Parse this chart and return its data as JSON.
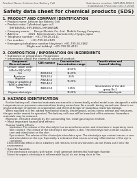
{
  "bg_color": "#f0ede8",
  "text_color": "#222222",
  "title": "Safety data sheet for chemical products (SDS)",
  "header_left": "Product Name: Lithium Ion Battery Cell",
  "header_right_line1": "Substance number: SWX4N9-00610",
  "header_right_line2": "Established / Revision: Dec.7.2018",
  "section1_title": "1. PRODUCT AND COMPANY IDENTIFICATION",
  "section1_lines": [
    "  • Product name: Lithium Ion Battery Cell",
    "  • Product code: Cylindrical-type cell",
    "       (IHF18650U, IHF18650L, IHR18650A)",
    "  • Company name:     Denyo Electric Co., Ltd.  Mobile Energy Company",
    "  • Address:           2021  Kamimatsuen, Sumoto-City, Hyogo, Japan",
    "  • Telephone number:  +81-799-26-4111",
    "  • Fax number:        +81-799-26-4129",
    "  • Emergency telephone number (daytime): +81-799-26-3662",
    "                           (Night and holiday): +81-799-26-4101"
  ],
  "section2_title": "2. COMPOSITION / INFORMATION ON INGREDIENTS",
  "section2_sub1": "  • Substance or preparation: Preparation",
  "section2_sub2": "  • Information about the chemical nature of product:",
  "table_headers": [
    "Component\n(Several name)",
    "CAS number",
    "Concentration /\nConcentration range",
    "Classification and\nhazard labeling"
  ],
  "table_rows": [
    [
      "Lithium cobalt oxide\n(LiMnCo(II)[CoO2])",
      "-",
      "30-60%",
      "-"
    ],
    [
      "Iron",
      "7439-89-6",
      "16-29%",
      "-"
    ],
    [
      "Aluminum",
      "7429-90-5",
      "2-6%",
      "-"
    ],
    [
      "Graphite\n(flake or graphite-1)\n(A18Co-graphite1)",
      "7782-42-5\n7782-44-2",
      "10-20%",
      "-"
    ],
    [
      "Copper",
      "7440-50-8",
      "3-15%",
      "Sensitization of the skin\ngroup No.2"
    ],
    [
      "Organic electrolyte",
      "-",
      "10-20%",
      "Inflammable liquid"
    ]
  ],
  "section3_title": "3. HAZARDS IDENTIFICATION",
  "section3_lines": [
    "   For the battery cell, chemical materials are stored in a hermetically sealed metal case, designed to withstand",
    "temperatures or pressures-concentrations during normal use. As a result, during normal-use, there is no",
    "physical danger of ignition or evaporation and thermal danger of hazardous materials leakage.",
    "   When exposed to a fire, added mechanical shocks, decomposed, unless stems without any measures,",
    "the gas inside cannot be operated. The battery cell case will be breached of fire-extreme, hazardous",
    "materials may be released.",
    "   Moreover, if heated strongly by the surrounding fire, small gas may be emitted."
  ],
  "section3_bullet1": "  • Most important hazard and effects:",
  "section3_health": "  Human health effects:",
  "section3_health_lines": [
    "      Inhalation: The release of the electrolyte has an anesthesia action and stimulates in respiratory tract.",
    "      Skin contact: The release of the electrolyte stimulates a skin. The electrolyte skin contact causes a",
    "      sore and stimulation on the skin.",
    "      Eye contact: The release of the electrolyte stimulates eyes. The electrolyte eye contact causes a sore",
    "      and stimulation on the eye. Especially, a substance that causes a strong inflammation of the eye is",
    "      contained.",
    "   Environmental effects: Since a battery cell remains in the environment, do not throw out it into the",
    "   environment."
  ],
  "section3_bullet2": "  • Specific hazards:",
  "section3_specific_lines": [
    "   If the electrolyte contacts with water, it will generate detrimental hydrogen fluoride.",
    "   Since the organic electrolyte is inflammable liquid, do not bring close to fire."
  ]
}
